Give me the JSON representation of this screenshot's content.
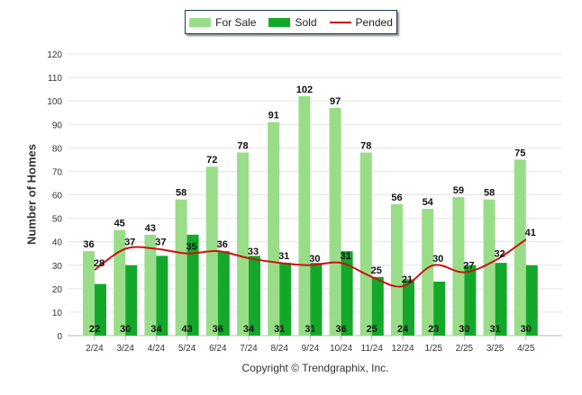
{
  "chart_data": {
    "type": "bar",
    "categories": [
      "2/24",
      "3/24",
      "4/24",
      "5/24",
      "6/24",
      "7/24",
      "8/24",
      "9/24",
      "10/24",
      "11/24",
      "12/24",
      "1/25",
      "2/25",
      "3/25",
      "4/25"
    ],
    "series": [
      {
        "name": "For Sale",
        "type": "bar",
        "color": "#99dd88",
        "values": [
          36,
          45,
          43,
          58,
          72,
          78,
          91,
          102,
          97,
          78,
          56,
          54,
          59,
          58,
          75
        ]
      },
      {
        "name": "Sold",
        "type": "bar",
        "color": "#14a82a",
        "values": [
          22,
          30,
          34,
          43,
          36,
          34,
          31,
          31,
          36,
          25,
          24,
          23,
          30,
          31,
          30
        ]
      },
      {
        "name": "Pended",
        "type": "line",
        "color": "#cc1111",
        "values": [
          28,
          37,
          37,
          35,
          36,
          33,
          31,
          30,
          31,
          25,
          21,
          30,
          27,
          32,
          41
        ]
      }
    ],
    "ylabel": "Number of Homes",
    "yticks": [
      0,
      10,
      20,
      30,
      40,
      50,
      60,
      70,
      80,
      90,
      100,
      110,
      120
    ],
    "ylim": [
      0,
      120
    ],
    "grid": true,
    "legend_position": "top"
  },
  "copyright": "Copyright © Trendgraphix, Inc."
}
